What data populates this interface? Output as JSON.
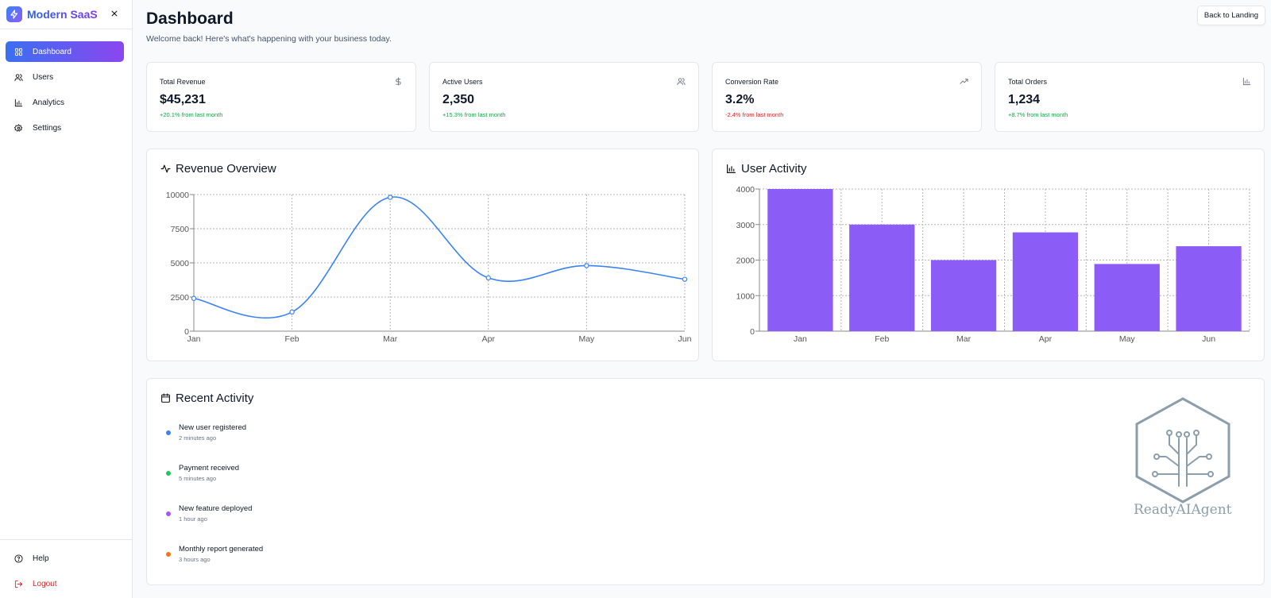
{
  "sidebar": {
    "brand": "Modern SaaS",
    "items": [
      {
        "label": "Dashboard",
        "icon": "grid-icon",
        "active": true
      },
      {
        "label": "Users",
        "icon": "users-icon"
      },
      {
        "label": "Analytics",
        "icon": "bar-chart-icon"
      },
      {
        "label": "Settings",
        "icon": "gear-icon"
      }
    ],
    "bottom": [
      {
        "label": "Help",
        "icon": "help-circle-icon"
      },
      {
        "label": "Logout",
        "icon": "logout-icon"
      }
    ]
  },
  "header": {
    "title": "Dashboard",
    "subtitle": "Welcome back! Here's what's happening with your business today.",
    "back_button": "Back to Landing"
  },
  "stats": [
    {
      "label": "Total Revenue",
      "value": "$45,231",
      "change": "+20.1% from last month",
      "icon": "dollar-icon",
      "trend": "positive"
    },
    {
      "label": "Active Users",
      "value": "2,350",
      "change": "+15.3% from last month",
      "icon": "users-icon",
      "trend": "positive"
    },
    {
      "label": "Conversion Rate",
      "value": "3.2%",
      "change": "-2.4% from last month",
      "icon": "trending-up-icon",
      "trend": "negative"
    },
    {
      "label": "Total Orders",
      "value": "1,234",
      "change": "+8.7% from last month",
      "icon": "bar-chart-icon",
      "trend": "positive"
    }
  ],
  "revenue": {
    "title": "Revenue Overview",
    "icon": "activity-icon"
  },
  "user_activity": {
    "title": "User Activity",
    "icon": "bar-chart-icon"
  },
  "chart_data": [
    {
      "type": "line",
      "title": "Revenue Overview",
      "categories": [
        "Jan",
        "Feb",
        "Mar",
        "Apr",
        "May",
        "Jun"
      ],
      "values": [
        2400,
        1400,
        9800,
        3900,
        4800,
        3800
      ],
      "ylim": [
        0,
        10000
      ],
      "yticks": [
        0,
        2500,
        5000,
        7500,
        10000
      ],
      "grid": true,
      "color": "#3b82f6"
    },
    {
      "type": "bar",
      "title": "User Activity",
      "categories": [
        "Jan",
        "Feb",
        "Mar",
        "Apr",
        "May",
        "Jun"
      ],
      "values": [
        4000,
        3000,
        2000,
        2780,
        1890,
        2390
      ],
      "ylim": [
        0,
        4000
      ],
      "yticks": [
        0,
        1000,
        2000,
        3000,
        4000
      ],
      "grid": true,
      "color": "#8b5cf6"
    }
  ],
  "recent": {
    "title": "Recent Activity",
    "icon": "calendar-icon",
    "items": [
      {
        "title": "New user registered",
        "time": "2 minutes ago",
        "color": "#3b82f6"
      },
      {
        "title": "Payment received",
        "time": "5 minutes ago",
        "color": "#22c55e"
      },
      {
        "title": "New feature deployed",
        "time": "1 hour ago",
        "color": "#a855f7"
      },
      {
        "title": "Monthly report generated",
        "time": "3 hours ago",
        "color": "#f97316"
      }
    ]
  },
  "watermark": {
    "text": "ReadyAIAgent"
  }
}
